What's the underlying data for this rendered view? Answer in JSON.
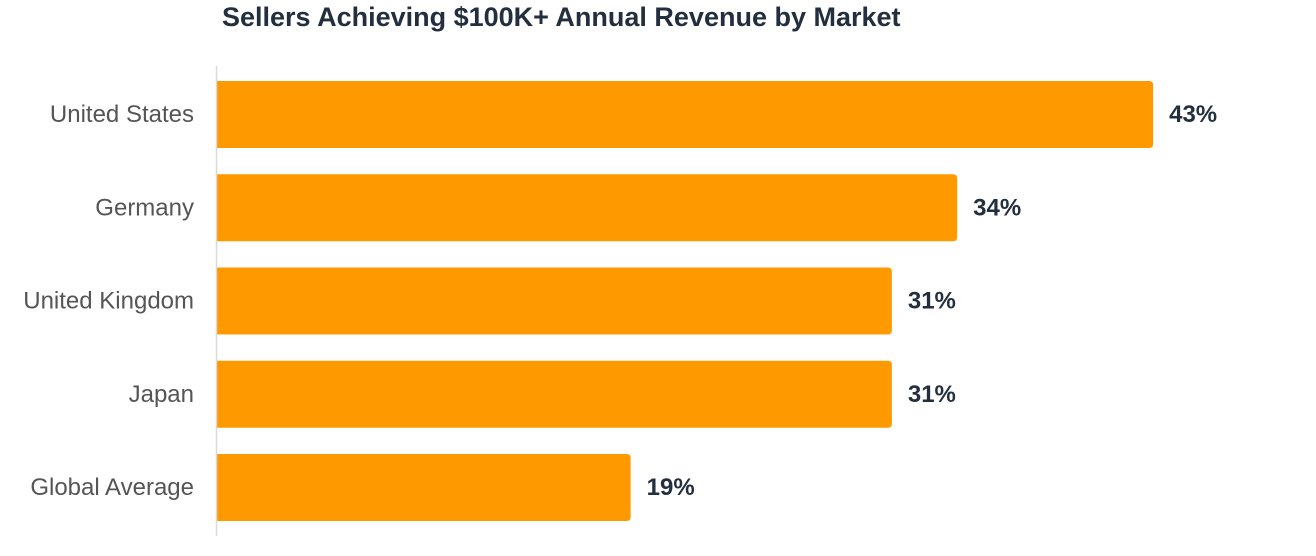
{
  "chart_data": {
    "type": "bar",
    "orientation": "horizontal",
    "title": "Sellers Achieving $100K+ Annual Revenue by Market",
    "xlabel": "",
    "ylabel": "",
    "categories": [
      "United States",
      "Germany",
      "United Kingdom",
      "Japan",
      "Global Average"
    ],
    "values": [
      43,
      34,
      31,
      31,
      19
    ],
    "value_labels": [
      "43%",
      "34%",
      "31%",
      "31%",
      "19%"
    ],
    "unit": "%",
    "xlim": [
      0,
      50
    ],
    "grid": false,
    "legend": "none",
    "bar_color": "#ff9900",
    "label_color": "#232f3e",
    "category_color": "#555555"
  }
}
